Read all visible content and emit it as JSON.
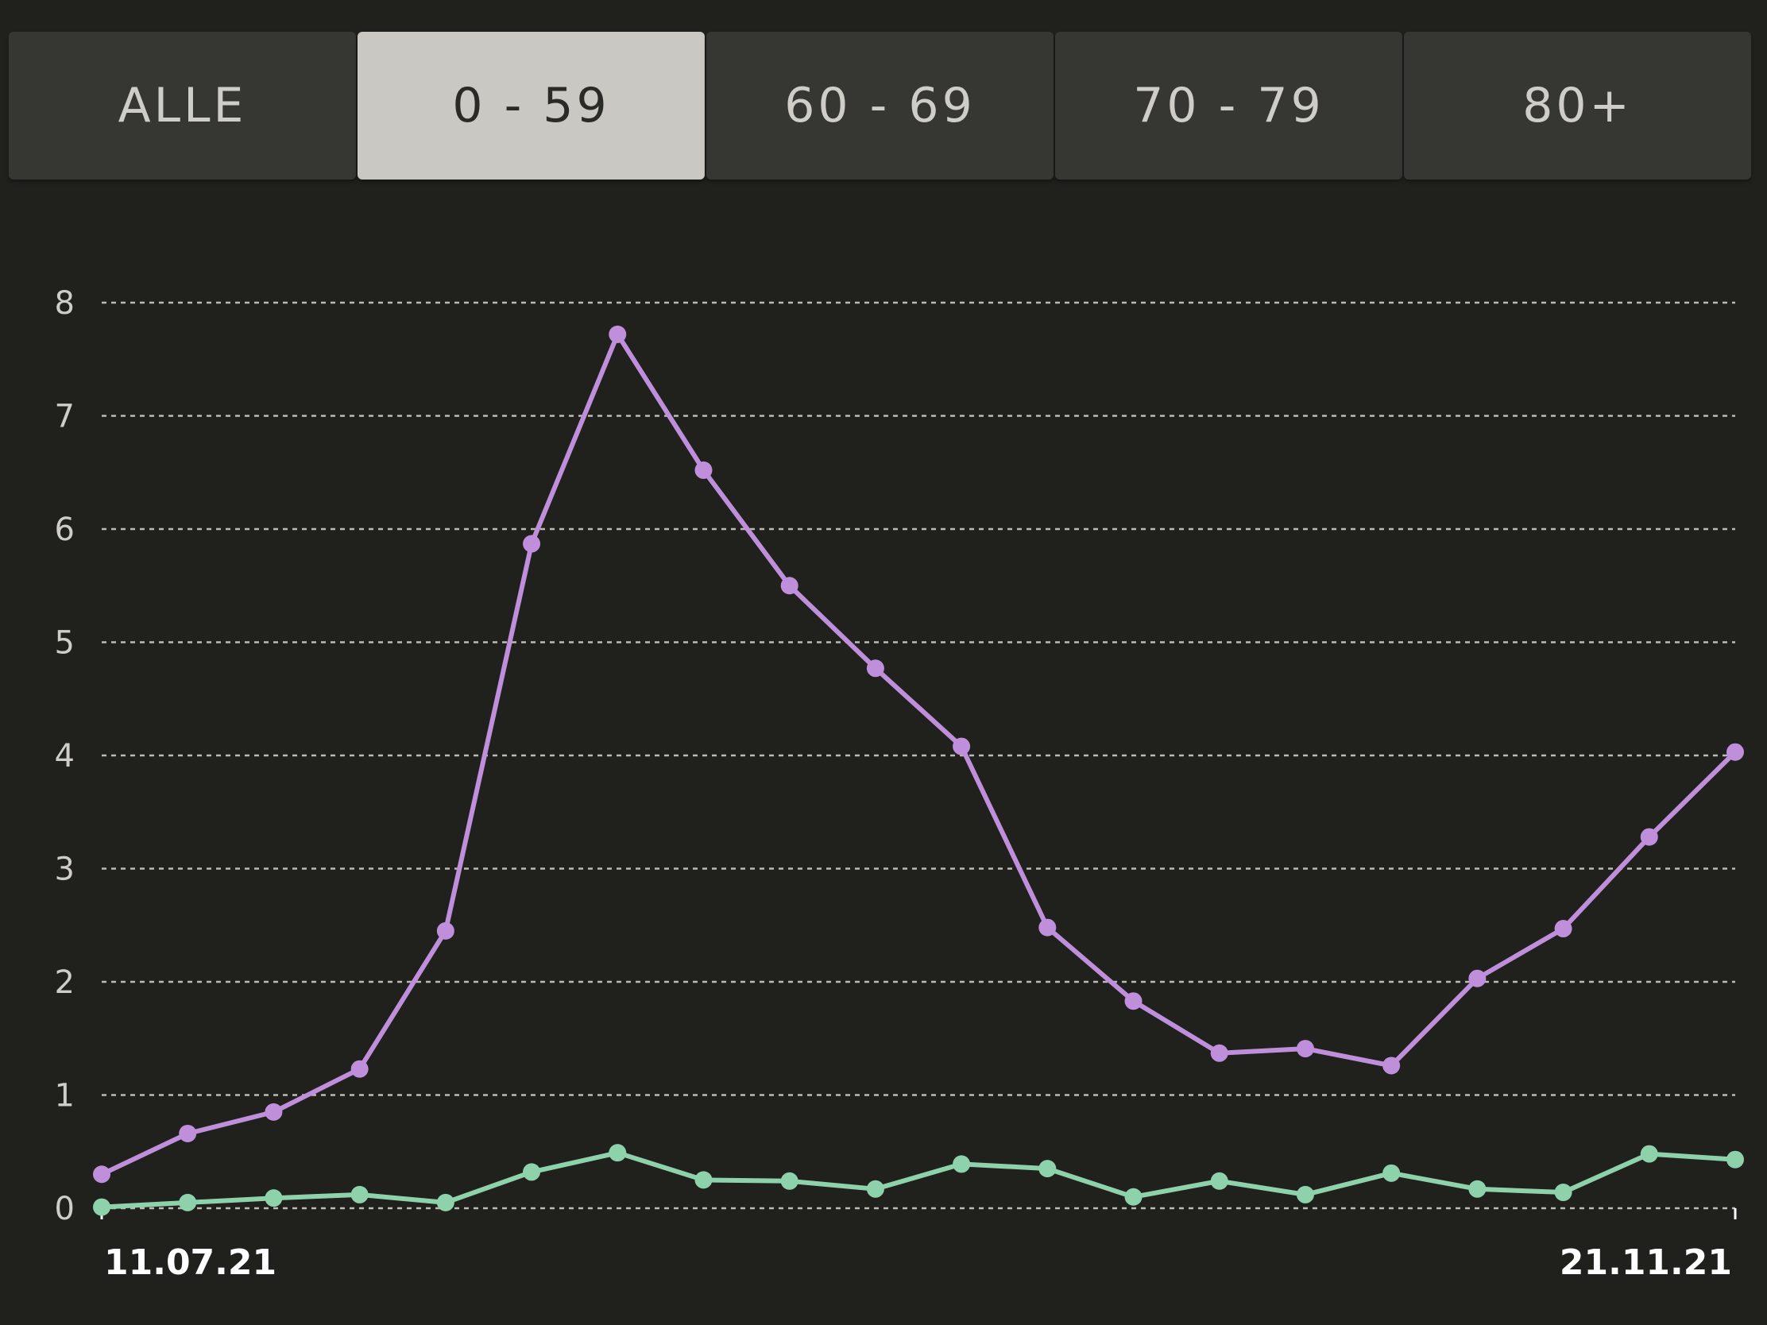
{
  "tabs": [
    {
      "label": "ALLE",
      "selected": false
    },
    {
      "label": "0 - 59",
      "selected": true
    },
    {
      "label": "60 - 69",
      "selected": false
    },
    {
      "label": "70 - 79",
      "selected": false
    },
    {
      "label": "80+",
      "selected": false
    }
  ],
  "colors": {
    "background": "#20201d",
    "series_purple": "#c08fdc",
    "series_green": "#8ed2ac",
    "grid": "#d8d6d0",
    "tick_label": "#cfcdc7",
    "date_label": "#ffffff"
  },
  "chart_data": {
    "type": "line",
    "title": "",
    "xlabel": "",
    "ylabel": "",
    "ylim": [
      0,
      8
    ],
    "y_ticks": [
      "0",
      "1",
      "2",
      "3",
      "4",
      "5",
      "6",
      "7",
      "8"
    ],
    "x_tick_labels": [
      "11.07.21",
      "21.11.21"
    ],
    "x_start": "11.07.21",
    "x_end": "21.11.21",
    "grid": true,
    "series": [
      {
        "color": "#c08fdc",
        "values": [
          0.3,
          0.66,
          0.85,
          1.23,
          2.45,
          5.87,
          7.72,
          6.52,
          5.5,
          4.77,
          4.08,
          2.48,
          1.83,
          1.37,
          1.41,
          1.26,
          2.03,
          2.47,
          3.28,
          4.03
        ]
      },
      {
        "color": "#8ed2ac",
        "values": [
          0.01,
          0.05,
          0.09,
          0.12,
          0.05,
          0.32,
          0.49,
          0.25,
          0.24,
          0.17,
          0.39,
          0.35,
          0.1,
          0.24,
          0.12,
          0.31,
          0.17,
          0.14,
          0.48,
          0.43
        ]
      }
    ]
  }
}
